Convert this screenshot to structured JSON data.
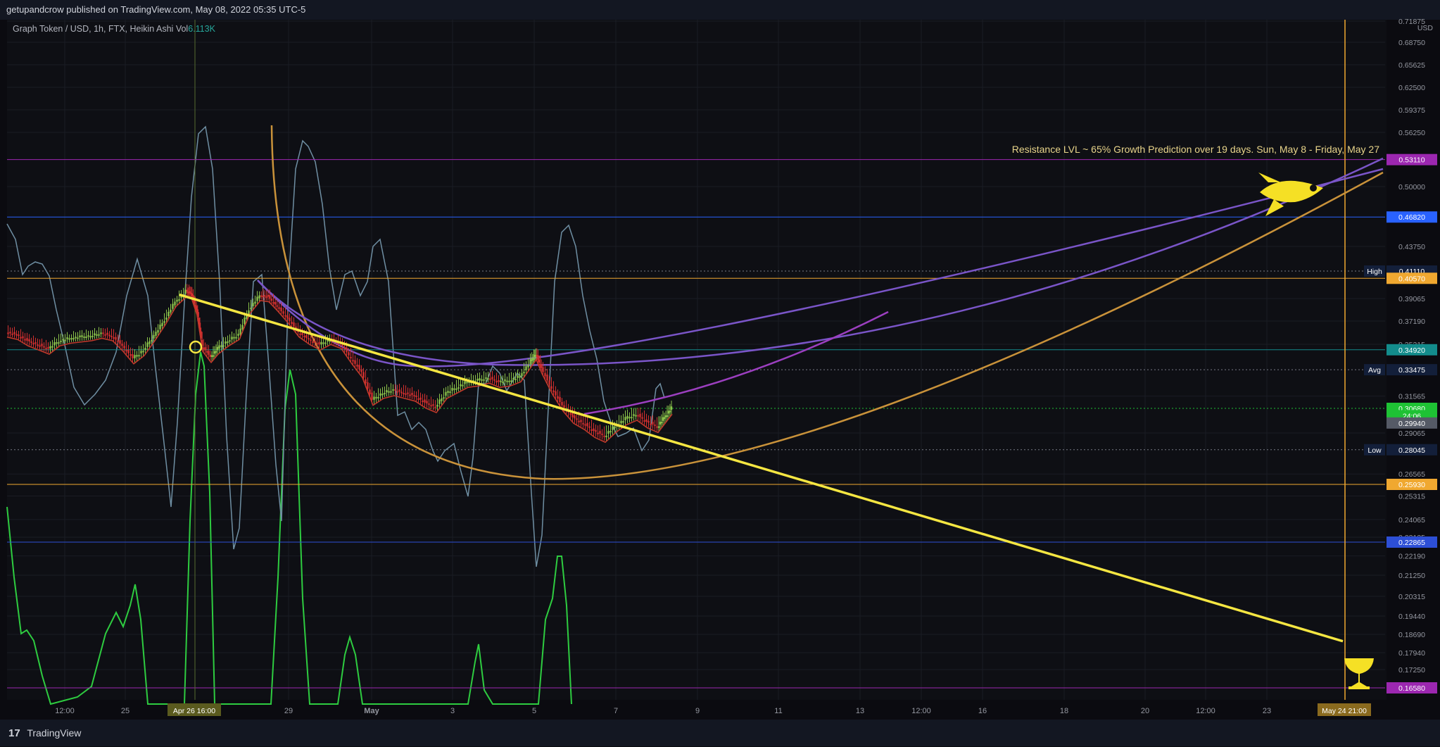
{
  "header": {
    "text": "getupandcrow published on TradingView.com, May 08, 2022 05:35 UTC-5"
  },
  "legend": {
    "symbol": "Graph Token / USD, 1h, FTX, Heikin Ashi",
    "vol_label": "Vol",
    "vol_value": "6.113K"
  },
  "footer": {
    "logo": "17",
    "brand": "TradingView"
  },
  "colors": {
    "background": "#0e0f14",
    "trendline": "#f5e642",
    "arc_orange": "#c9923a",
    "arc_purple": "#7a55c8",
    "oscillator": "#6f8fa3",
    "volume_line": "#2ecc40",
    "up_candle": "#8bc34a",
    "down_candle": "#d32f2f"
  },
  "chart_data": {
    "type": "line",
    "title": "Graph Token / USD, 1h, FTX, Heikin Ashi",
    "currency": "USD",
    "price_ticks": [
      "0.71875",
      "0.68750",
      "0.65625",
      "0.62500",
      "0.59375",
      "0.56250",
      "0.50000",
      "0.43750",
      "0.39065",
      "0.37190",
      "0.35315",
      "0.31565",
      "0.29065",
      "0.26565",
      "0.25315",
      "0.24065",
      "0.23125",
      "0.22190",
      "0.21250",
      "0.20315",
      "0.19440",
      "0.18690",
      "0.17940",
      "0.17250"
    ],
    "price_tick_values": [
      0.71875,
      0.6875,
      0.65625,
      0.625,
      0.59375,
      0.5625,
      0.5,
      0.4375,
      0.39065,
      0.3719,
      0.35315,
      0.31565,
      0.29065,
      0.26565,
      0.25315,
      0.24065,
      0.23125,
      0.2219,
      0.2125,
      0.20315,
      0.1944,
      0.1869,
      0.1794,
      0.1725
    ],
    "time_ticks": [
      "12:00",
      "25",
      "29",
      "May",
      "3",
      "5",
      "7",
      "9",
      "11",
      "13",
      "12:00",
      "16",
      "18",
      "20",
      "12:00",
      "23"
    ],
    "time_tick_x": [
      92,
      178,
      410,
      528,
      643,
      759,
      875,
      991,
      1106,
      1222,
      1309,
      1396,
      1512,
      1627,
      1713,
      1800
    ],
    "time_markers": [
      {
        "label": "Apr 26   16:00",
        "x": 276
      },
      {
        "label": "May 24   21:00",
        "x": 1910
      }
    ],
    "price_badges": [
      {
        "value": "0.53110",
        "price": 0.5311,
        "color": "#9c27b0",
        "prefix": ""
      },
      {
        "value": "0.46820",
        "price": 0.4682,
        "color": "#2962ff",
        "prefix": ""
      },
      {
        "value": "0.41110",
        "price": 0.4111,
        "color": "#131f3a",
        "prefix": "High"
      },
      {
        "value": "0.40570",
        "price": 0.4057,
        "color": "#f0a830",
        "prefix": ""
      },
      {
        "value": "0.34920",
        "price": 0.3492,
        "color": "#138c8c",
        "prefix": ""
      },
      {
        "value": "0.33475",
        "price": 0.33475,
        "color": "#131f3a",
        "prefix": "Avg"
      },
      {
        "value": "0.30680",
        "price": 0.3068,
        "color": "#1ec234",
        "prefix": ""
      },
      {
        "value": "24:06",
        "price": 0.302,
        "color": "#1ec234",
        "prefix": ""
      },
      {
        "value": "0.29940",
        "price": 0.2972,
        "color": "#555a66",
        "prefix": ""
      },
      {
        "value": "0.28045",
        "price": 0.28045,
        "color": "#131f3a",
        "prefix": "Low"
      },
      {
        "value": "0.25930",
        "price": 0.2593,
        "color": "#f0a830",
        "prefix": ""
      },
      {
        "value": "0.22865",
        "price": 0.22865,
        "color": "#2d4fd6",
        "prefix": ""
      },
      {
        "value": "0.16580",
        "price": 0.1658,
        "color": "#9c27b0",
        "prefix": ""
      }
    ],
    "horizontal_levels": [
      {
        "price": 0.5311,
        "color": "#9c27b0",
        "style": "solid"
      },
      {
        "price": 0.4682,
        "color": "#2962ff",
        "style": "solid"
      },
      {
        "price": 0.4111,
        "color": "#787b86",
        "style": "dotted"
      },
      {
        "price": 0.4057,
        "color": "#f0a830",
        "style": "solid"
      },
      {
        "price": 0.3492,
        "color": "#138c8c",
        "style": "solid"
      },
      {
        "price": 0.33475,
        "color": "#787b86",
        "style": "dotted"
      },
      {
        "price": 0.3068,
        "color": "#1ec234",
        "style": "dotted"
      },
      {
        "price": 0.28045,
        "color": "#787b86",
        "style": "dotted"
      },
      {
        "price": 0.2593,
        "color": "#f0a830",
        "style": "solid"
      },
      {
        "price": 0.22865,
        "color": "#2d4fd6",
        "style": "solid"
      },
      {
        "price": 0.1658,
        "color": "#9c27b0",
        "style": "solid"
      }
    ],
    "annotation": "Resistance LVL ~ 65% Growth Prediction over 19 days. Sun, May 8 - Friday, May 27",
    "trendline": {
      "from": {
        "x": 245,
        "price": 0.3935
      },
      "to": {
        "x": 1908,
        "price": 0.1841
      }
    },
    "price_series": [
      [
        0,
        0.363
      ],
      [
        15,
        0.361
      ],
      [
        30,
        0.356
      ],
      [
        45,
        0.353
      ],
      [
        60,
        0.35
      ],
      [
        75,
        0.356
      ],
      [
        90,
        0.358
      ],
      [
        105,
        0.359
      ],
      [
        120,
        0.36
      ],
      [
        135,
        0.362
      ],
      [
        150,
        0.36
      ],
      [
        165,
        0.352
      ],
      [
        180,
        0.343
      ],
      [
        195,
        0.349
      ],
      [
        210,
        0.36
      ],
      [
        225,
        0.373
      ],
      [
        240,
        0.388
      ],
      [
        255,
        0.396
      ],
      [
        262,
        0.395
      ],
      [
        270,
        0.381
      ],
      [
        278,
        0.352
      ],
      [
        290,
        0.344
      ],
      [
        300,
        0.35
      ],
      [
        315,
        0.356
      ],
      [
        330,
        0.361
      ],
      [
        345,
        0.382
      ],
      [
        360,
        0.393
      ],
      [
        372,
        0.392
      ],
      [
        385,
        0.384
      ],
      [
        400,
        0.374
      ],
      [
        415,
        0.363
      ],
      [
        430,
        0.357
      ],
      [
        445,
        0.353
      ],
      [
        460,
        0.357
      ],
      [
        475,
        0.354
      ],
      [
        490,
        0.343
      ],
      [
        505,
        0.333
      ],
      [
        520,
        0.313
      ],
      [
        535,
        0.318
      ],
      [
        550,
        0.32
      ],
      [
        565,
        0.318
      ],
      [
        580,
        0.316
      ],
      [
        595,
        0.311
      ],
      [
        610,
        0.308
      ],
      [
        625,
        0.318
      ],
      [
        640,
        0.322
      ],
      [
        655,
        0.326
      ],
      [
        670,
        0.327
      ],
      [
        685,
        0.329
      ],
      [
        700,
        0.326
      ],
      [
        715,
        0.327
      ],
      [
        730,
        0.33
      ],
      [
        745,
        0.341
      ],
      [
        752,
        0.346
      ],
      [
        760,
        0.336
      ],
      [
        775,
        0.321
      ],
      [
        790,
        0.309
      ],
      [
        805,
        0.301
      ],
      [
        820,
        0.297
      ],
      [
        835,
        0.292
      ],
      [
        850,
        0.289
      ],
      [
        865,
        0.295
      ],
      [
        880,
        0.3
      ],
      [
        895,
        0.303
      ],
      [
        910,
        0.298
      ],
      [
        925,
        0.295
      ],
      [
        935,
        0.301
      ],
      [
        945,
        0.307
      ]
    ]
  }
}
